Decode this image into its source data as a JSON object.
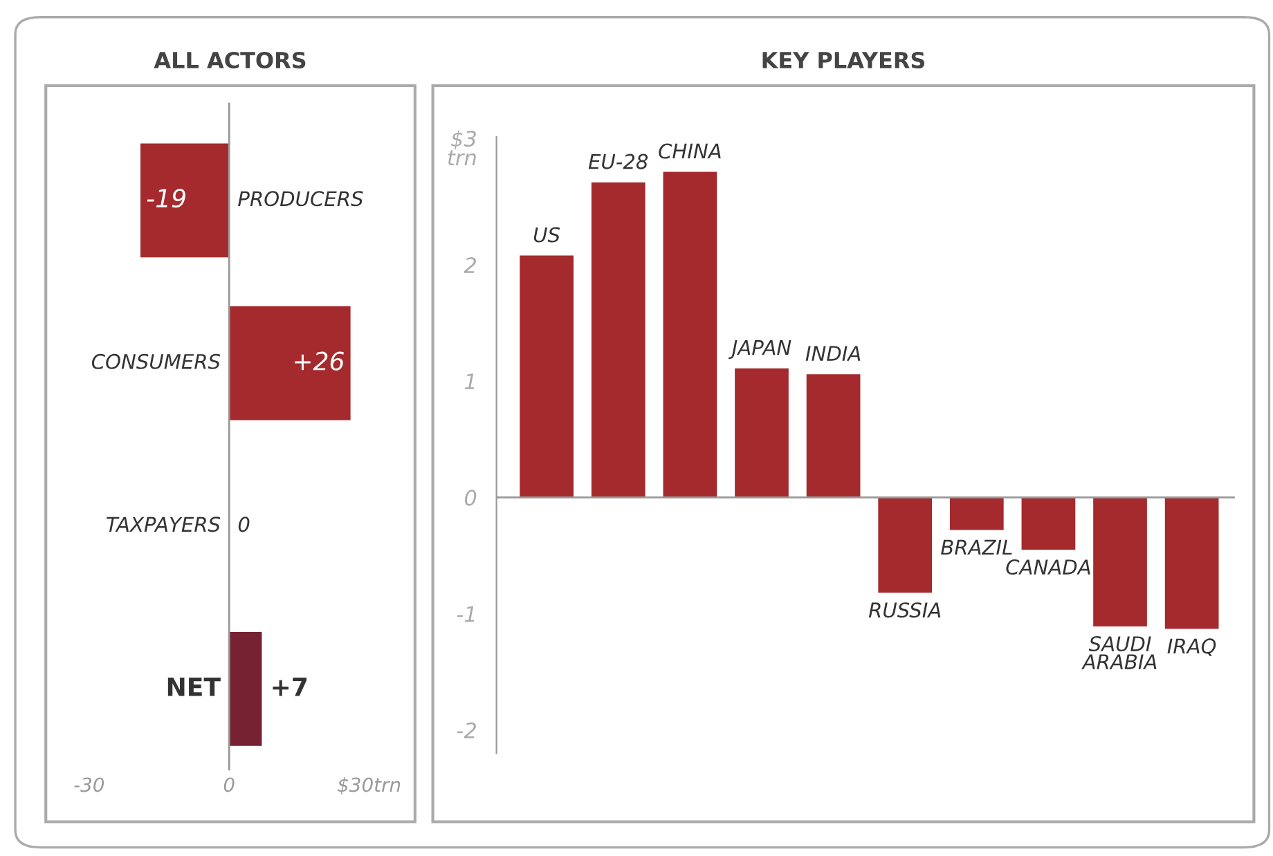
{
  "chart_data": [
    {
      "type": "bar",
      "title": "ALL ACTORS",
      "orientation": "horizontal",
      "categories": [
        "PRODUCERS",
        "CONSUMERS",
        "TAXPAYERS",
        "NET"
      ],
      "values": [
        -19,
        26,
        0,
        7
      ],
      "colors": [
        "#a52a2d",
        "#a52a2d",
        "#a52a2d",
        "#762232"
      ],
      "value_labels": [
        "-19",
        "+26",
        "0",
        "+7"
      ],
      "xlim": [
        -30,
        30
      ],
      "xticks": [
        -30,
        0,
        {
          "value": 30,
          "label": "$30trn"
        }
      ],
      "tick_labels": "x"
    },
    {
      "type": "bar",
      "title": "KEY PLAYERS",
      "categories": [
        "US",
        "EU-28",
        "CHINA",
        "JAPAN",
        "INDIA",
        "RUSSIA",
        "BRAZIL",
        "CANADA",
        "SAUDI\nARABIA",
        "IRAQ"
      ],
      "values": [
        2.08,
        2.71,
        2.8,
        1.11,
        1.06,
        -0.82,
        -0.28,
        -0.45,
        -1.11,
        -1.13
      ],
      "color": "#a52a2d",
      "ylim": [
        -2.2,
        3.1
      ],
      "yticks": [
        -2,
        -1,
        0,
        1,
        2,
        {
          "value": 3,
          "label": "$3\ntrn"
        }
      ]
    }
  ]
}
